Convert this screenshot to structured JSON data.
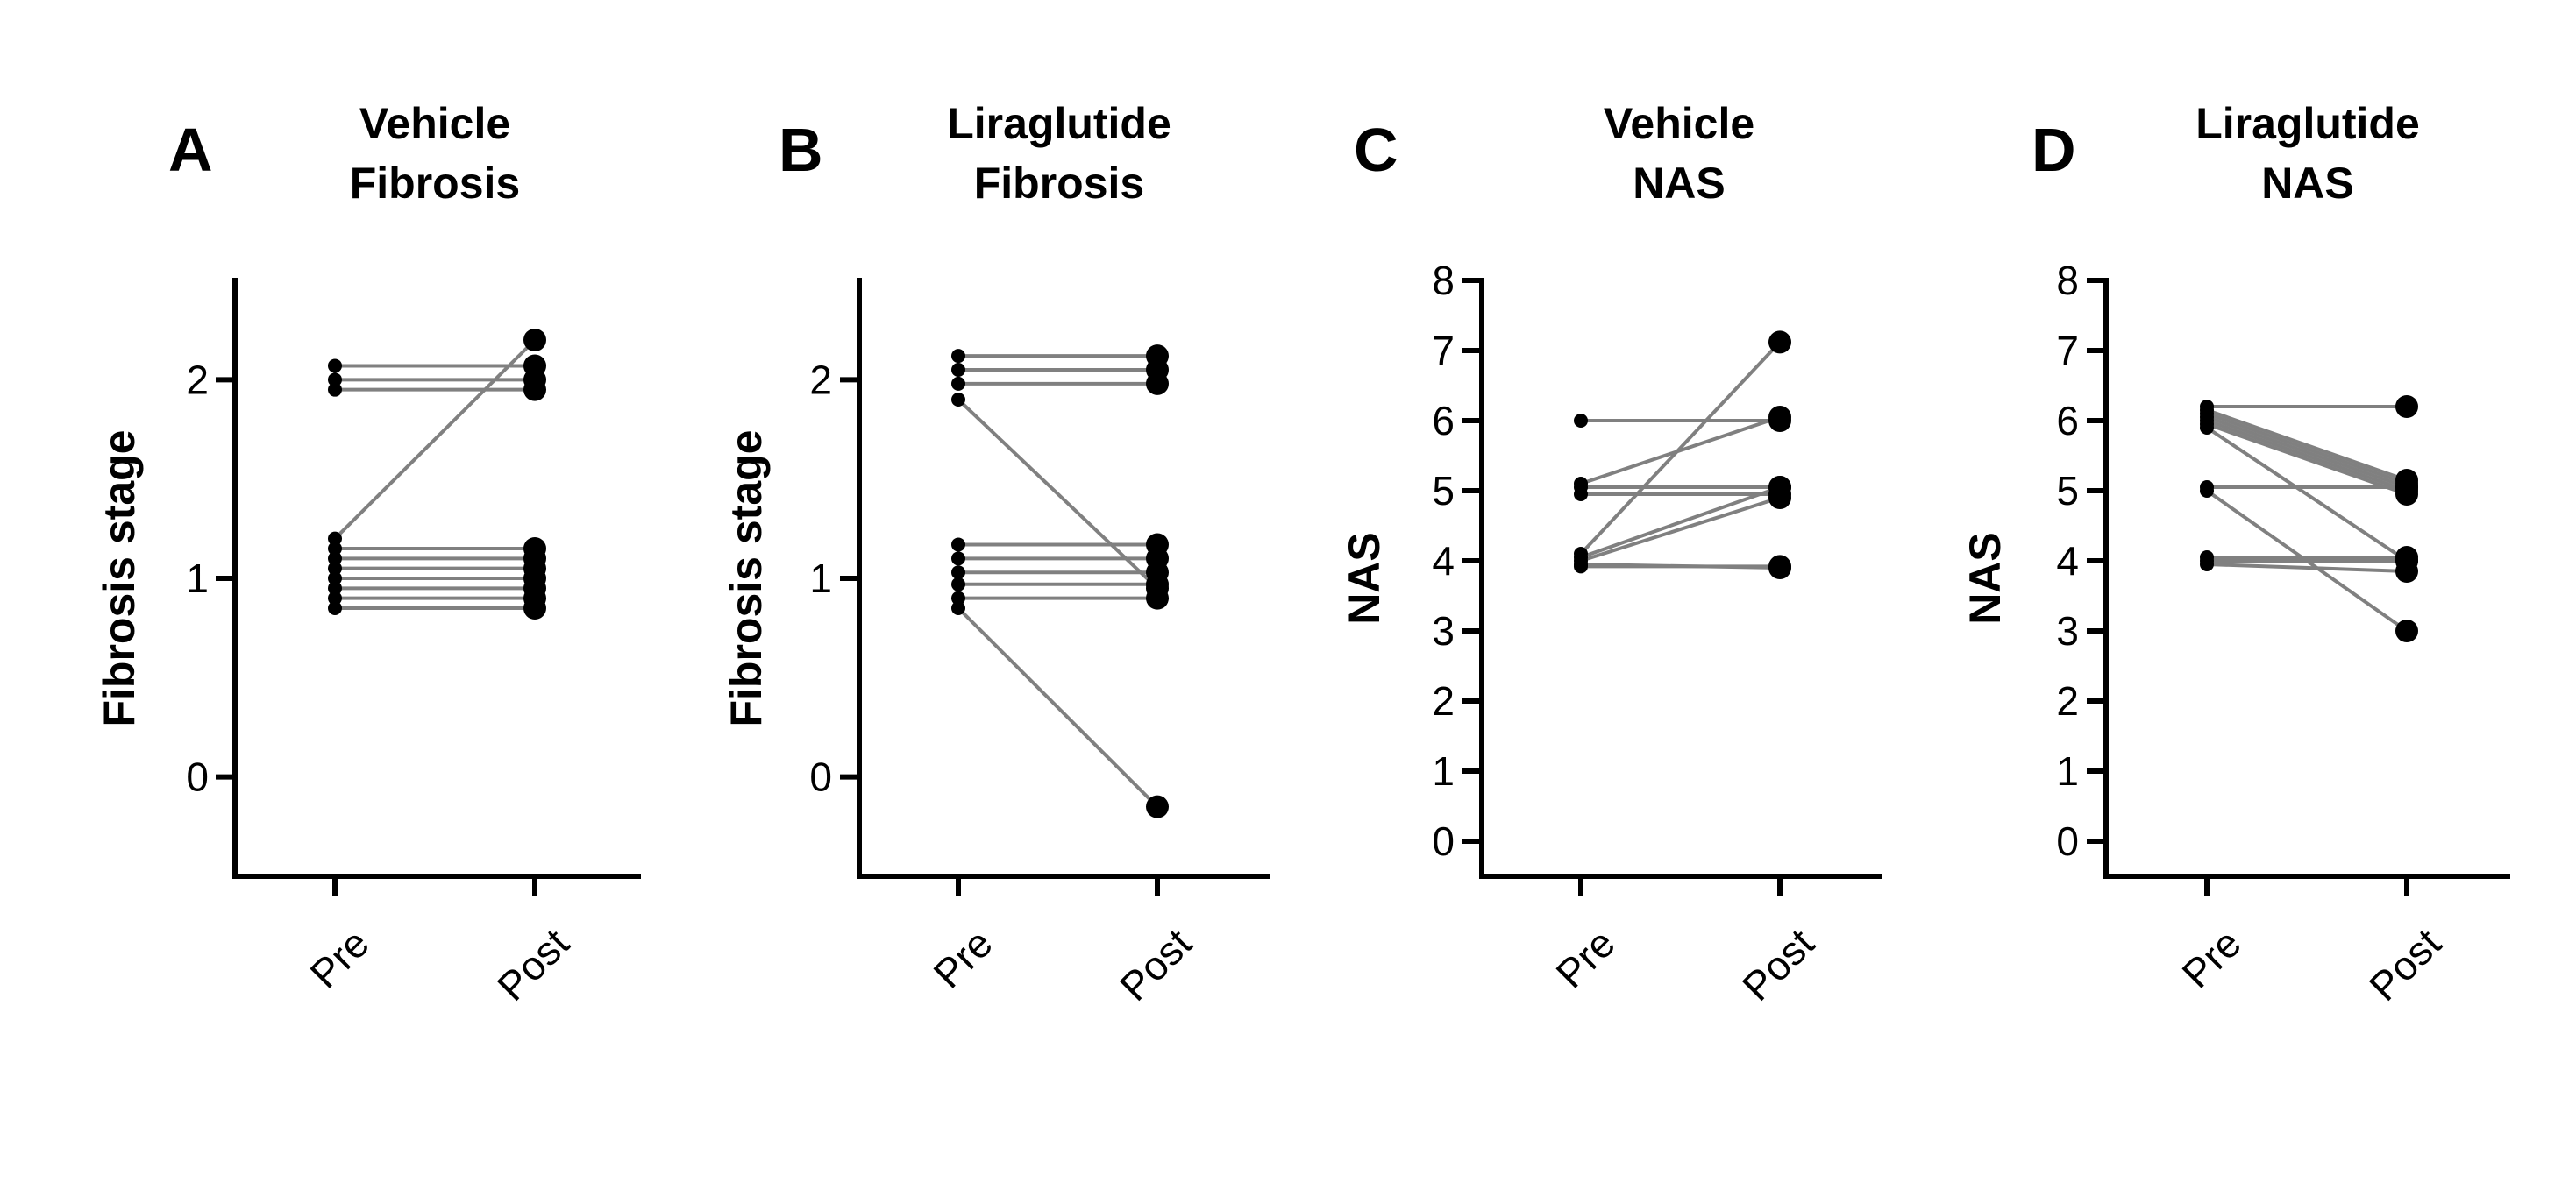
{
  "chart_data": [
    {
      "type": "line",
      "panel": "A",
      "title_lines": [
        "Vehicle",
        "Fibrosis"
      ],
      "xlabel": "",
      "ylabel": "Fibrosis stage",
      "categories": [
        "Pre",
        "Post"
      ],
      "yticks": [
        0,
        1,
        2
      ],
      "ylim": [
        -0.5,
        2.5
      ],
      "pairs": [
        [
          2.07,
          2.07
        ],
        [
          2.0,
          2.0
        ],
        [
          1.95,
          1.95
        ],
        [
          1.2,
          2.2
        ],
        [
          1.15,
          1.15
        ],
        [
          1.1,
          1.1
        ],
        [
          1.05,
          1.05
        ],
        [
          1.0,
          1.0
        ],
        [
          0.95,
          0.95
        ],
        [
          0.9,
          0.9
        ],
        [
          0.85,
          0.85
        ]
      ]
    },
    {
      "type": "line",
      "panel": "B",
      "title_lines": [
        "Liraglutide",
        "Fibrosis"
      ],
      "xlabel": "",
      "ylabel": "Fibrosis stage",
      "categories": [
        "Pre",
        "Post"
      ],
      "yticks": [
        0,
        1,
        2
      ],
      "ylim": [
        -0.5,
        2.5
      ],
      "pairs": [
        [
          2.12,
          2.12
        ],
        [
          2.05,
          2.05
        ],
        [
          1.98,
          1.98
        ],
        [
          1.9,
          0.95
        ],
        [
          1.17,
          1.17
        ],
        [
          1.1,
          1.1
        ],
        [
          1.03,
          1.03
        ],
        [
          0.97,
          0.97
        ],
        [
          0.9,
          0.9
        ],
        [
          0.85,
          -0.15
        ]
      ]
    },
    {
      "type": "line",
      "panel": "C",
      "title_lines": [
        "Vehicle",
        "NAS"
      ],
      "xlabel": "",
      "ylabel": "NAS",
      "categories": [
        "Pre",
        "Post"
      ],
      "yticks": [
        0,
        1,
        2,
        3,
        4,
        5,
        6,
        7,
        8
      ],
      "ylim": [
        -0.5,
        8
      ],
      "pairs": [
        [
          6.0,
          6.0
        ],
        [
          5.1,
          6.05
        ],
        [
          5.05,
          5.05
        ],
        [
          4.95,
          4.95
        ],
        [
          4.1,
          7.12
        ],
        [
          4.05,
          5.05
        ],
        [
          4.0,
          4.9
        ],
        [
          3.95,
          3.9
        ],
        [
          3.92,
          3.92
        ]
      ]
    },
    {
      "type": "line",
      "panel": "D",
      "title_lines": [
        "Liraglutide",
        "NAS"
      ],
      "xlabel": "",
      "ylabel": "NAS",
      "categories": [
        "Pre",
        "Post"
      ],
      "yticks": [
        0,
        1,
        2,
        3,
        4,
        5,
        6,
        7,
        8
      ],
      "ylim": [
        -0.5,
        8
      ],
      "pairs": [
        [
          6.2,
          6.2
        ],
        [
          6.15,
          5.15
        ],
        [
          6.1,
          5.1
        ],
        [
          6.05,
          5.05
        ],
        [
          6.0,
          5.0
        ],
        [
          5.95,
          4.95
        ],
        [
          5.9,
          4.0
        ],
        [
          5.05,
          5.05
        ],
        [
          5.0,
          3.0
        ],
        [
          4.05,
          4.05
        ],
        [
          4.0,
          4.0
        ],
        [
          3.95,
          3.85
        ]
      ]
    }
  ]
}
